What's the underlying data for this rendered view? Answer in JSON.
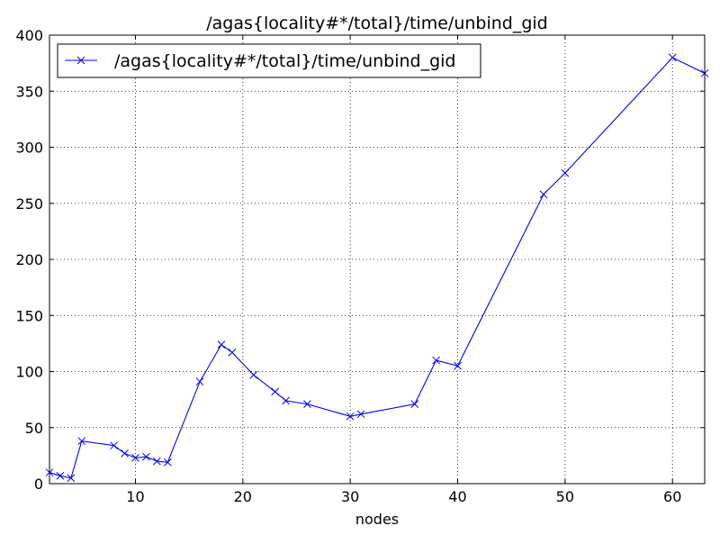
{
  "chart_data": {
    "type": "line",
    "title": "/agas{locality#*/total}/time/unbind_gid",
    "xlabel": "nodes",
    "ylabel": "",
    "xlim": [
      2,
      63
    ],
    "ylim": [
      0,
      400
    ],
    "xticks": [
      10,
      20,
      30,
      40,
      50,
      60
    ],
    "yticks": [
      0,
      50,
      100,
      150,
      200,
      250,
      300,
      350,
      400
    ],
    "grid": true,
    "legend_position": "top-left",
    "series": [
      {
        "name": "/agas{locality#*/total}/time/unbind_gid",
        "color": "#0000ff",
        "marker": "x",
        "x": [
          2,
          3,
          4,
          5,
          8,
          9,
          10,
          11,
          12,
          13,
          16,
          18,
          19,
          21,
          23,
          24,
          26,
          30,
          31,
          36,
          38,
          40,
          48,
          50,
          60,
          63
        ],
        "y": [
          10,
          7,
          5,
          38,
          34,
          27,
          23,
          24,
          20,
          19,
          91,
          124,
          117,
          97,
          82,
          74,
          71,
          60,
          62,
          71,
          110,
          105,
          258,
          277,
          380,
          366
        ]
      }
    ]
  }
}
